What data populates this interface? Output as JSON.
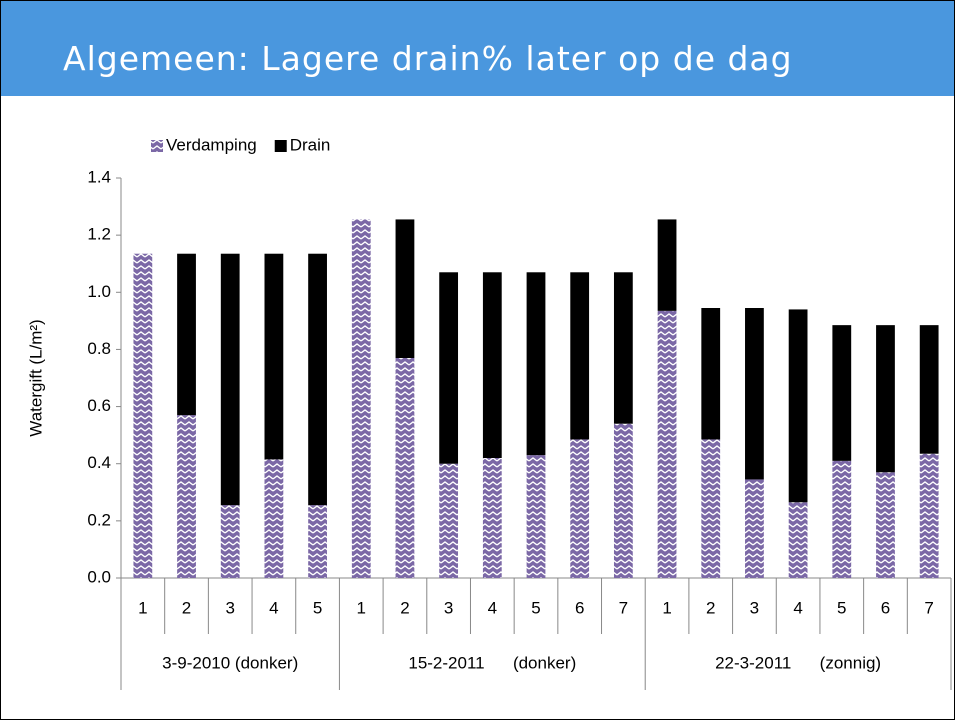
{
  "title": "Algemeen: Lagere drain% later op de dag",
  "chart_data": {
    "type": "stacked_bar",
    "y_label": "Watergift (L/m²)",
    "category_groups": [
      {
        "name": "3-9-2010 (donker)",
        "categories": [
          "1",
          "2",
          "3",
          "4",
          "5"
        ]
      },
      {
        "name": "15-2-2011      (donker)",
        "categories": [
          "1",
          "2",
          "3",
          "4",
          "5",
          "6",
          "7"
        ]
      },
      {
        "name": "22-3-2011      (zonnig)",
        "categories": [
          "1",
          "2",
          "3",
          "4",
          "5",
          "6",
          "7"
        ]
      }
    ],
    "series": [
      {
        "name": "Verdamping",
        "color": "#7b68a6",
        "pattern": "zigzag",
        "values": [
          1.135,
          0.57,
          0.255,
          0.415,
          0.255,
          1.255,
          0.77,
          0.4,
          0.42,
          0.43,
          0.485,
          0.54,
          0.935,
          0.485,
          0.345,
          0.265,
          0.41,
          0.37,
          0.435
        ]
      },
      {
        "name": "Drain",
        "color": "#000000",
        "values": [
          0,
          0.565,
          0.88,
          0.72,
          0.88,
          0,
          0.485,
          0.67,
          0.65,
          0.64,
          0.585,
          0.53,
          0.32,
          0.46,
          0.6,
          0.675,
          0.475,
          0.515,
          0.45
        ]
      }
    ],
    "ylim": [
      0,
      1.4
    ],
    "yticks": [
      {
        "value": 0,
        "label": "0.0"
      },
      0.2,
      0.4,
      0.6,
      0.8,
      {
        "value": 1,
        "label": "1.0"
      },
      1.2,
      1.4
    ],
    "grid": false,
    "legend": "top-left"
  }
}
